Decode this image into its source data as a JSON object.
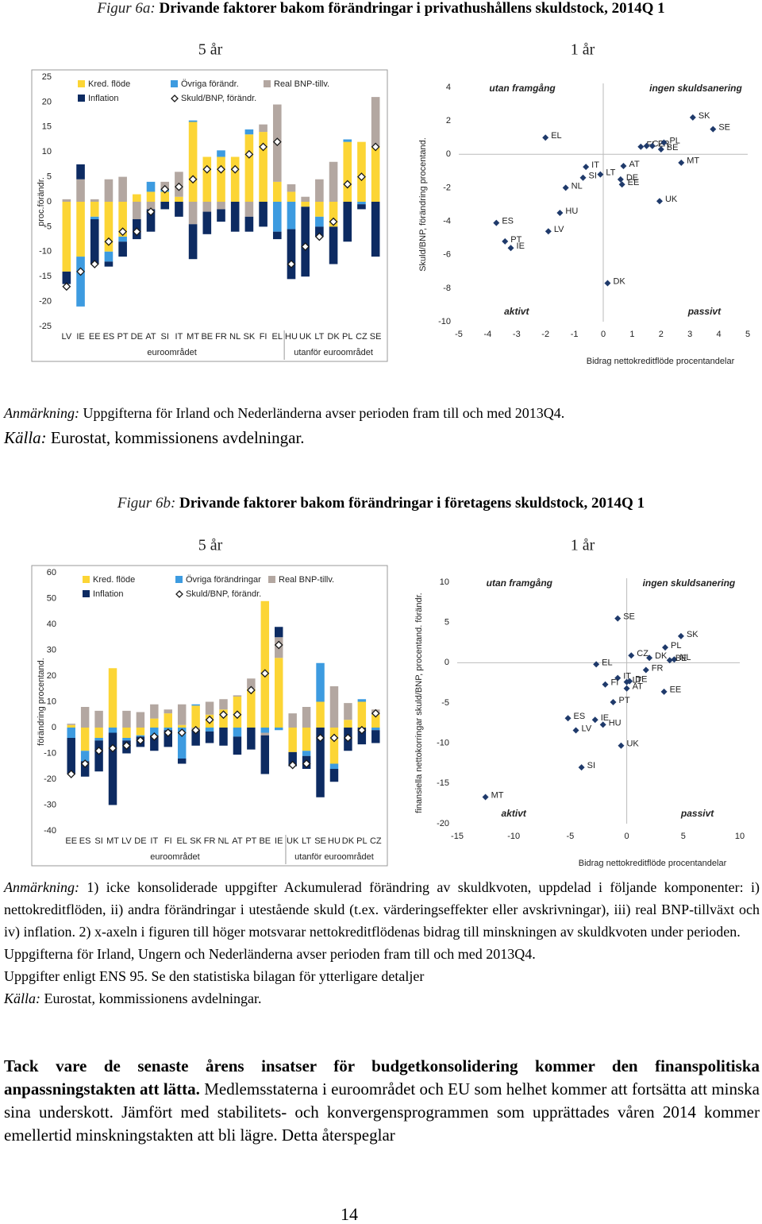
{
  "figure_6a": {
    "label": "Figur 6a:",
    "title": "Drivande faktorer bakom förändringar i privathushållens skuldstock, 2014Q 1",
    "note_label": "Anmärkning:",
    "note": "Uppgifterna för Irland och Nederländerna avser perioden fram till och med 2013Q4.",
    "source_label": "Källa:",
    "source": "Eurostat, kommissionens avdelningar."
  },
  "figure_6b": {
    "label": "Figur 6b:",
    "title": "Drivande faktorer bakom förändringar i företagens skuldstock, 2014Q 1",
    "note_label": "Anmärkning:",
    "notes": [
      "1) icke konsoliderade uppgifter Ackumulerad förändring av skuldkvoten, uppdelad i följande komponenter: i) nettokreditflöden, ii) andra förändringar i utestående skuld (t.ex. värderingseffekter eller avskrivningar), iii) real BNP-tillväxt och iv) inflation. 2) x-axeln i figuren till höger motsvarar nettokreditflödenas bidrag till minskningen av skuldkvoten under perioden.",
      "Uppgifterna för Irland, Ungern och Nederländerna avser perioden fram till och med 2013Q4.",
      "Uppgifter enligt ENS 95. Se den statistiska bilagan för ytterligare detaljer"
    ],
    "source_label": "Källa:",
    "source": "Eurostat, kommissionens avdelningar."
  },
  "body": {
    "bold": "Tack vare de senaste årens insatser för budgetkonsolidering kommer den finanspolitiska anpassningstakten att lätta.",
    "text": " Medlemsstaterna i euroområdet och EU som helhet kommer att fortsätta att minska sina underskott. Jämfört med stabilitets- och konvergensprogrammen som upprättades våren 2014 kommer emellertid minskningstakten att bli lägre. Detta återspeglar"
  },
  "page_number": "14",
  "chart_data": [
    {
      "type": "bar",
      "title": "5 år",
      "ylabel": "proc.förändr.",
      "categories": [
        "LV",
        "IE",
        "EE",
        "ES",
        "PT",
        "DE",
        "AT",
        "SI",
        "IT",
        "MT",
        "BE",
        "FR",
        "NL",
        "SK",
        "FI",
        "EL",
        "HU",
        "UK",
        "LT",
        "DK",
        "PL",
        "CZ",
        "SE"
      ],
      "groups": [
        {
          "label": "euroområdet",
          "count": 16
        },
        {
          "label": "utanför euroområdet",
          "count": 7
        }
      ],
      "series": [
        {
          "name": "Kred. flöde",
          "color": "#fcd535",
          "values": [
            -14,
            -11,
            -3,
            -10,
            -7,
            1.5,
            2,
            2,
            1,
            16,
            9,
            9,
            9,
            13.5,
            14,
            4,
            2,
            -1,
            -3,
            -5,
            12,
            12,
            11
          ]
        },
        {
          "name": "Övriga förändr.",
          "color": "#3d9be0",
          "values": [
            0,
            -10,
            -0.5,
            -2,
            -1,
            0,
            2,
            0.5,
            0,
            0.3,
            0,
            1.3,
            0,
            1,
            0,
            -6,
            -5.5,
            0,
            -2,
            0,
            0.5,
            -0.5,
            0
          ]
        },
        {
          "name": "Real BNP-tillv.",
          "color": "#b3a7a1",
          "values": [
            0.5,
            4.5,
            0.5,
            4.5,
            5,
            -3.5,
            -1.5,
            1.5,
            5,
            -4.5,
            -2,
            -1.5,
            0,
            -3,
            1.5,
            15.5,
            1.5,
            1,
            4.5,
            8,
            0,
            0,
            10
          ]
        },
        {
          "name": "Inflation",
          "color": "#0d2b62",
          "values": [
            -2.5,
            3,
            -9,
            -1,
            -3,
            -4,
            -4.5,
            -1.5,
            -3,
            -7,
            -4.5,
            -2.5,
            -6,
            -3,
            -5,
            -1.5,
            -10,
            -14,
            -2,
            -7.5,
            -8,
            -1,
            -11
          ]
        },
        {
          "name": "Skuld/BNP, förändr.",
          "marker": "diamond",
          "color": "#1a1a1a",
          "values": [
            -17,
            -14,
            -12.5,
            -8,
            -6,
            -6,
            -2,
            2.5,
            3,
            4.5,
            6.5,
            6.5,
            6.5,
            9.5,
            11,
            12,
            -12.5,
            -9,
            -7,
            -4,
            3.5,
            5,
            11
          ]
        }
      ],
      "ylim": [
        -25,
        25
      ],
      "yticks": [
        -25,
        -20,
        -15,
        -10,
        -5,
        0,
        5,
        10,
        15,
        20,
        25
      ]
    },
    {
      "type": "scatter",
      "title": "1 år",
      "ylabel": "Skuld/BNP, förändring procentand.",
      "xlabel": "Bidrag nettokreditflöde procentandelar",
      "annotations": [
        "utan framgång",
        "ingen skuldsanering",
        "aktivt",
        "passivt"
      ],
      "color": "#1f3a6b",
      "labels": [
        "EL",
        "IT",
        "SI",
        "NL",
        "HU",
        "LV",
        "ES",
        "PT",
        "IE",
        "LT",
        "DK",
        "AT",
        "DE",
        "EE",
        "FI",
        "CZ",
        "FR",
        "PL",
        "BE",
        "MT",
        "UK",
        "SK",
        "SE"
      ],
      "x": [
        -2,
        -0.6,
        -0.7,
        -1.3,
        -1.5,
        -1.9,
        -3.7,
        -3.4,
        -3.2,
        -0.1,
        0.15,
        0.7,
        0.6,
        0.65,
        1.3,
        1.5,
        1.7,
        2.1,
        2,
        2.7,
        1.95,
        3.1,
        3.8
      ],
      "values": [
        1,
        -0.75,
        -1.4,
        -2,
        -3.5,
        -4.6,
        -4.1,
        -5.2,
        -5.6,
        -1.2,
        -7.7,
        -0.7,
        -1.5,
        -1.8,
        0.45,
        0.5,
        0.5,
        0.7,
        0.3,
        -0.5,
        -2.8,
        2.2,
        1.5
      ],
      "xlim": [
        -5,
        5
      ],
      "xticks": [
        -5,
        -4,
        -3,
        -2,
        -1,
        0,
        1,
        2,
        3,
        4,
        5
      ],
      "ylim": [
        -10,
        4
      ],
      "yticks": [
        -10,
        -8,
        -6,
        -4,
        -2,
        0,
        2,
        4
      ]
    },
    {
      "type": "bar",
      "title": "5 år",
      "ylabel": "förändring procentand.",
      "categories": [
        "EE",
        "ES",
        "SI",
        "MT",
        "LV",
        "DE",
        "IT",
        "FI",
        "EL",
        "SK",
        "FR",
        "NL",
        "AT",
        "PT",
        "BE",
        "IE",
        "UK",
        "LT",
        "SE",
        "HU",
        "DK",
        "PL",
        "CZ"
      ],
      "groups": [
        {
          "label": "euroområdet",
          "count": 16
        },
        {
          "label": "utanför euroområdet",
          "count": 7
        }
      ],
      "series": [
        {
          "name": "Kred. flöde",
          "color": "#fcd535",
          "values": [
            1,
            -9,
            -4,
            23,
            -4,
            -3,
            3.5,
            5.5,
            1,
            8.5,
            5,
            7,
            12,
            15,
            49,
            27,
            -9.5,
            -9,
            10,
            -14,
            3,
            10,
            5
          ]
        },
        {
          "name": "Övriga förändringar",
          "color": "#3d9be0",
          "values": [
            -4,
            -4,
            -1,
            -2,
            -1,
            -0.5,
            -3,
            -1,
            -12,
            0.5,
            -1.5,
            0,
            -3.5,
            0,
            -2,
            -1,
            0,
            -2,
            15,
            -2,
            0,
            1,
            -1
          ]
        },
        {
          "name": "Real BNP-tillv.",
          "color": "#b3a7a1",
          "values": [
            0.5,
            8,
            6.5,
            0,
            6.5,
            6,
            5.5,
            1.5,
            8,
            -1,
            5,
            4,
            0.5,
            4,
            -1,
            8,
            5.5,
            8,
            0,
            16,
            6.5,
            0,
            2
          ]
        },
        {
          "name": "Inflation",
          "color": "#0d2b62",
          "values": [
            -14,
            -6,
            -12,
            -28,
            -5,
            -4,
            -6,
            -6.5,
            -2,
            -6,
            -4.5,
            -7,
            -7,
            -8.5,
            -15,
            4,
            -5.5,
            -5,
            -27,
            -5,
            -9,
            -6.5,
            -5
          ]
        },
        {
          "name": "Skuld/BNP, förändr.",
          "marker": "diamond",
          "color": "#1a1a1a",
          "values": [
            -18,
            -14,
            -9,
            -8,
            -7,
            -5,
            -3.5,
            -2,
            -2,
            -1,
            3,
            5,
            5,
            14.5,
            21,
            32,
            -14.5,
            -14,
            -4,
            -4,
            -4,
            -1,
            5.5
          ]
        }
      ],
      "ylim": [
        -40,
        60
      ],
      "yticks": [
        -40,
        -30,
        -20,
        -10,
        0,
        10,
        20,
        30,
        40,
        50,
        60
      ]
    },
    {
      "type": "scatter",
      "title": "1 år",
      "ylabel": "finansiella nettokorringar skuld/BNP, procentand. förändr.",
      "xlabel": "Bidrag nettokreditflöde procentandelar",
      "annotations": [
        "utan framgång",
        "ingen skuldsanering",
        "aktivt",
        "passivt"
      ],
      "color": "#1f3a6b",
      "labels": [
        "SE",
        "SK",
        "PL",
        "CZ",
        "NL",
        "DK",
        "BE",
        "FR",
        "EL",
        "IT",
        "LT",
        "DE",
        "AT",
        "FI",
        "PT",
        "EE",
        "ES",
        "IE",
        "HU",
        "LV",
        "UK",
        "SI",
        "MT"
      ],
      "x": [
        -0.8,
        4.8,
        3.4,
        0.4,
        4.2,
        2,
        3.8,
        1.7,
        -2.7,
        -0.8,
        0,
        0.25,
        0,
        -1.9,
        -1.2,
        3.3,
        -5.2,
        -2.8,
        -2.1,
        -4.5,
        -0.5,
        -4,
        -12.5
      ],
      "values": [
        5.5,
        3.3,
        1.9,
        0.9,
        0.4,
        0.6,
        0.3,
        -0.9,
        -0.2,
        -1.9,
        -2.4,
        -2.3,
        -3.2,
        -2.7,
        -4.9,
        -3.6,
        -6.9,
        -7.1,
        -7.7,
        -8.4,
        -10.3,
        -13,
        -16.7
      ],
      "xlim": [
        -15,
        10
      ],
      "xticks": [
        -15,
        -10,
        -5,
        0,
        5,
        10
      ],
      "ylim": [
        -20,
        10
      ],
      "yticks": [
        -20,
        -15,
        -10,
        -5,
        0,
        5,
        10
      ]
    }
  ]
}
